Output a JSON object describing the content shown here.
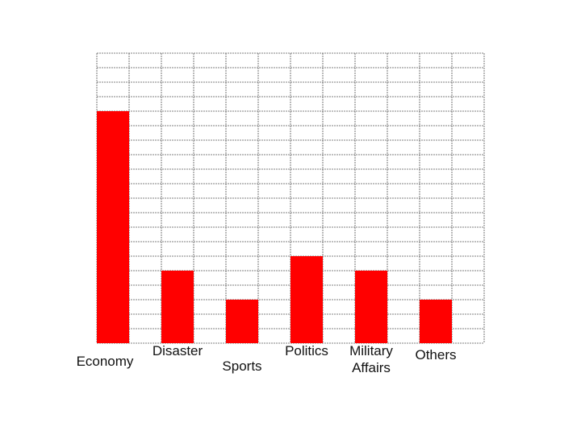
{
  "chart_data": {
    "type": "bar",
    "categories": [
      "Economy",
      "Disaster",
      "Sports",
      "Politics",
      "Military Affairs",
      "Others"
    ],
    "category_lines": [
      [
        "Economy"
      ],
      [
        "Disaster"
      ],
      [
        "Sports"
      ],
      [
        "Politics"
      ],
      [
        "Military",
        "Affairs"
      ],
      [
        "Others"
      ]
    ],
    "values": [
      16,
      5,
      3,
      6,
      5,
      3
    ],
    "ylim": [
      0,
      20
    ],
    "grid": true,
    "bar_color": "#ff0000",
    "grid_color": "#555555",
    "title": "",
    "xlabel": "",
    "ylabel": ""
  }
}
